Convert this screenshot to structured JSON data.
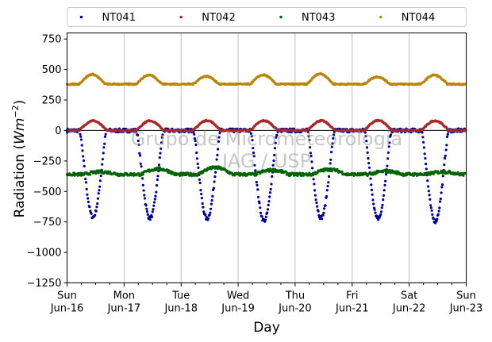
{
  "chart_data": {
    "type": "scatter",
    "xlabel": "Day",
    "ylabel_main": "Radiation (",
    "ylabel_unit": "Wm",
    "ylabel_exp": "−2",
    "ylabel_close": ")",
    "xlim": [
      0,
      7
    ],
    "ylim": [
      -1250,
      800
    ],
    "yticks": [
      {
        "value": 750,
        "label": "750"
      },
      {
        "value": 500,
        "label": "500"
      },
      {
        "value": 250,
        "label": "250"
      },
      {
        "value": 0,
        "label": "0"
      },
      {
        "value": -250,
        "label": "−250"
      },
      {
        "value": -500,
        "label": "−500"
      },
      {
        "value": -750,
        "label": "−750"
      },
      {
        "value": -1000,
        "label": "−1000"
      },
      {
        "value": -1250,
        "label": "−1250"
      }
    ],
    "xticks": [
      {
        "value": 0,
        "weekday": "Sun",
        "date": "Jun-16"
      },
      {
        "value": 1,
        "weekday": "Mon",
        "date": "Jun-17"
      },
      {
        "value": 2,
        "weekday": "Tue",
        "date": "Jun-18"
      },
      {
        "value": 3,
        "weekday": "Wed",
        "date": "Jun-19"
      },
      {
        "value": 4,
        "weekday": "Thu",
        "date": "Jun-20"
      },
      {
        "value": 5,
        "weekday": "Fri",
        "date": "Jun-21"
      },
      {
        "value": 6,
        "weekday": "Sat",
        "date": "Jun-22"
      },
      {
        "value": 7,
        "weekday": "Sun",
        "date": "Jun-23"
      }
    ],
    "grid": "vertical",
    "legend_position": "top",
    "zero_line": true,
    "series": [
      {
        "name": "NT041",
        "color": "#00008b",
        "baseline": 0,
        "day_amplitudes": [
          -710,
          -720,
          -725,
          -740,
          -715,
          -720,
          -745
        ],
        "day_start": 0.22,
        "day_end": 0.69
      },
      {
        "name": "NT042",
        "color": "#a52a2a",
        "baseline": 0,
        "day_amplitudes": [
          80,
          80,
          82,
          80,
          80,
          82,
          80
        ],
        "day_start": 0.2,
        "day_end": 0.71
      },
      {
        "name": "NT043",
        "color": "#006400",
        "baseline": -360,
        "day_amplitudes": [
          20,
          45,
          55,
          35,
          40,
          25,
          20
        ],
        "day_start": 0.3,
        "day_end": 0.9
      },
      {
        "name": "NT044",
        "color": "#b8860b",
        "baseline": 380,
        "day_amplitudes": [
          80,
          75,
          65,
          75,
          85,
          60,
          75
        ],
        "day_start": 0.2,
        "day_end": 0.68
      }
    ],
    "watermark_line1": "Grupo de Micrometeorologia",
    "watermark_line2": "IAG / USP"
  }
}
